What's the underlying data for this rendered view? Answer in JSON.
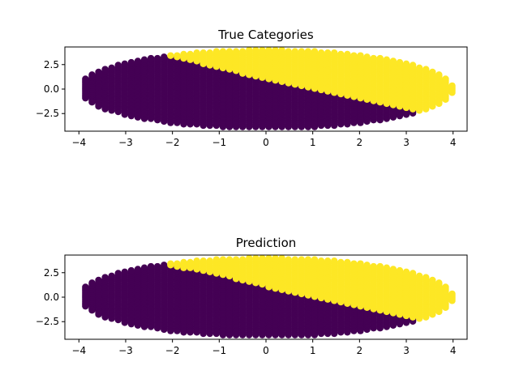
{
  "chart_data": [
    {
      "type": "scatter",
      "title": "True Categories",
      "xlabel": "",
      "ylabel": "",
      "xlim": [
        -4.3,
        4.3
      ],
      "ylim": [
        -4.3,
        4.3
      ],
      "xticks": [
        "−4",
        "−3",
        "−2",
        "−1",
        "0",
        "1",
        "2",
        "3",
        "4"
      ],
      "yticks": [
        "2.5",
        "0.0",
        "−2.5"
      ],
      "grid": false,
      "categories": [
        {
          "category": 0,
          "color": "#440154",
          "label": ""
        },
        {
          "category": 1,
          "color": "#fde725",
          "label": ""
        }
      ],
      "boundary_note": "",
      "x_ticks_values": [
        -4,
        -3,
        -2,
        -1,
        0,
        1,
        2,
        3,
        4
      ],
      "y_ticks_values": [
        2.5,
        0.0,
        -2.5
      ],
      "data_region": {
        "x_radius": 4.0,
        "y_radius": 4.0
      },
      "boundary": [
        [
          -2.1,
          3.4
        ],
        [
          -1.0,
          2.2
        ],
        [
          0.0,
          1.0
        ],
        [
          1.0,
          0.0
        ],
        [
          2.0,
          -1.0
        ],
        [
          3.0,
          -2.0
        ],
        [
          3.4,
          -2.3
        ]
      ]
    },
    {
      "type": "scatter",
      "title": "Prediction",
      "xlabel": "",
      "ylabel": "",
      "xlim": [
        -4.3,
        4.3
      ],
      "ylim": [
        -4.3,
        4.3
      ],
      "xticks": [
        "−4",
        "−3",
        "−2",
        "−1",
        "0",
        "1",
        "2",
        "3",
        "4"
      ],
      "yticks": [
        "2.5",
        "0.0",
        "−2.5"
      ],
      "grid": false,
      "categories": [
        {
          "category": 0,
          "color": "#440154",
          "label": ""
        },
        {
          "category": 1,
          "color": "#fde725",
          "label": ""
        }
      ],
      "boundary_note": "",
      "x_ticks_values": [
        -4,
        -3,
        -2,
        -1,
        0,
        1,
        2,
        3,
        4
      ],
      "y_ticks_values": [
        2.5,
        0.0,
        -2.5
      ],
      "data_region": {
        "x_radius": 4.0,
        "y_radius": 4.0
      },
      "boundary": [
        [
          -2.2,
          3.4
        ],
        [
          -1.0,
          2.3
        ],
        [
          0.0,
          1.1
        ],
        [
          1.0,
          0.1
        ],
        [
          2.0,
          -0.9
        ],
        [
          3.0,
          -1.9
        ],
        [
          3.3,
          -2.2
        ]
      ]
    }
  ]
}
